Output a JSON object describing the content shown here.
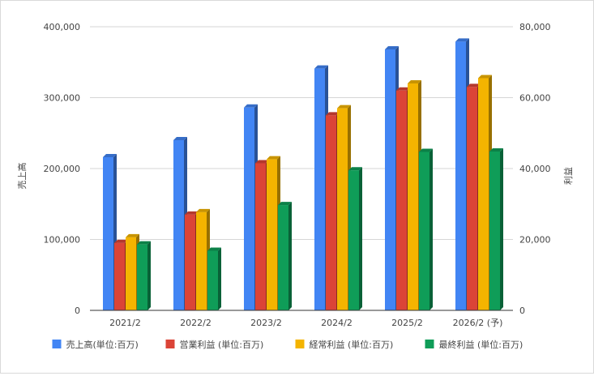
{
  "chart_data": {
    "type": "bar",
    "style": "3d",
    "categories": [
      "2021/2",
      "2022/2",
      "2023/2",
      "2024/2",
      "2025/2",
      "2026/2 (予)"
    ],
    "series": [
      {
        "name": "売上高(単位:百万)",
        "axis": "left",
        "color": "#4285F4",
        "values": [
          216000,
          240000,
          286000,
          341000,
          368000,
          379000
        ]
      },
      {
        "name": "営業利益 (単位:百万)",
        "axis": "right",
        "color": "#DB4437",
        "values": [
          19000,
          27000,
          41500,
          55000,
          62000,
          63000
        ]
      },
      {
        "name": "経常利益 (単位:百万)",
        "axis": "right",
        "color": "#F4B400",
        "values": [
          20600,
          27700,
          42600,
          57000,
          64000,
          65500
        ]
      },
      {
        "name": "最終利益 (単位:百万)",
        "axis": "right",
        "color": "#0F9D58",
        "values": [
          18600,
          16800,
          29700,
          39500,
          44700,
          44800
        ]
      }
    ],
    "y_left": {
      "label": "売上高",
      "range": [
        0,
        400000
      ],
      "ticks": [
        0,
        100000,
        200000,
        300000,
        400000
      ],
      "tick_labels": [
        "0",
        "100,000",
        "200,000",
        "300,000",
        "400,000"
      ]
    },
    "y_right": {
      "label": "利益",
      "range": [
        0,
        80000
      ],
      "ticks": [
        0,
        20000,
        40000,
        60000,
        80000
      ],
      "tick_labels": [
        "0",
        "20,000",
        "40,000",
        "60,000",
        "80,000"
      ]
    },
    "grid": true,
    "legend_position": "bottom"
  }
}
